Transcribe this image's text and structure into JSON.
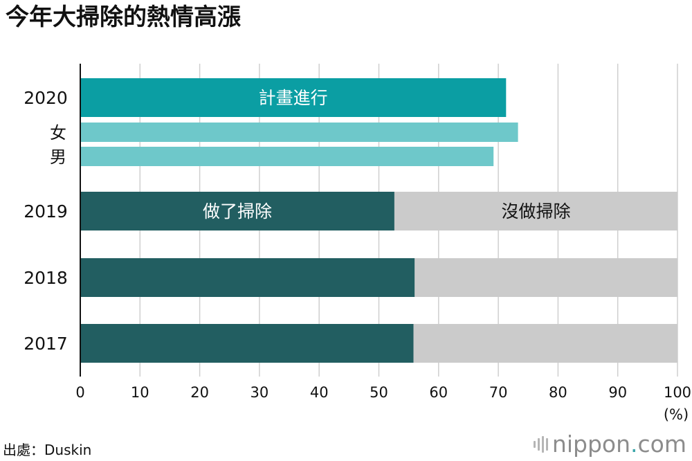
{
  "title": "今年大掃除的熱情高漲",
  "source": "出處：Duskin",
  "logo": {
    "name": "nippon",
    "dot": ".",
    "suffix": "com"
  },
  "colors": {
    "plan_total": "#0b9ea3",
    "plan_gender": "#6ec8ca",
    "did_clean": "#225e61",
    "not_clean": "#cbcbcb",
    "grid": "#cfcfcf",
    "axis": "#111111"
  },
  "chart_data": {
    "type": "bar",
    "orientation": "horizontal",
    "stacked": true,
    "xlim": [
      0,
      100
    ],
    "xticks": [
      0,
      10,
      20,
      30,
      40,
      50,
      60,
      70,
      80,
      90,
      100
    ],
    "xlabel": "(%)",
    "grid": true,
    "rows": [
      {
        "label": "2020",
        "segments": [
          {
            "name": "計畫進行",
            "value": 71.3,
            "color": "#0b9ea3",
            "show_label": true
          }
        ]
      },
      {
        "label": "女",
        "segments": [
          {
            "name": "",
            "value": 73.3,
            "color": "#6ec8ca",
            "show_label": false
          }
        ]
      },
      {
        "label": "男",
        "segments": [
          {
            "name": "",
            "value": 69.2,
            "color": "#6ec8ca",
            "show_label": false
          }
        ]
      },
      {
        "label": "2019",
        "segments": [
          {
            "name": "做了掃除",
            "value": 52.6,
            "color": "#225e61",
            "show_label": true
          },
          {
            "name": "沒做掃除",
            "value": 47.4,
            "color": "#cbcbcb",
            "show_label": true
          }
        ]
      },
      {
        "label": "2018",
        "segments": [
          {
            "name": "做了掃除",
            "value": 56.0,
            "color": "#225e61",
            "show_label": false
          },
          {
            "name": "沒做掃除",
            "value": 44.0,
            "color": "#cbcbcb",
            "show_label": false
          }
        ]
      },
      {
        "label": "2017",
        "segments": [
          {
            "name": "做了掃除",
            "value": 55.8,
            "color": "#225e61",
            "show_label": false
          },
          {
            "name": "沒做掃除",
            "value": 44.2,
            "color": "#cbcbcb",
            "show_label": false
          }
        ]
      }
    ]
  }
}
